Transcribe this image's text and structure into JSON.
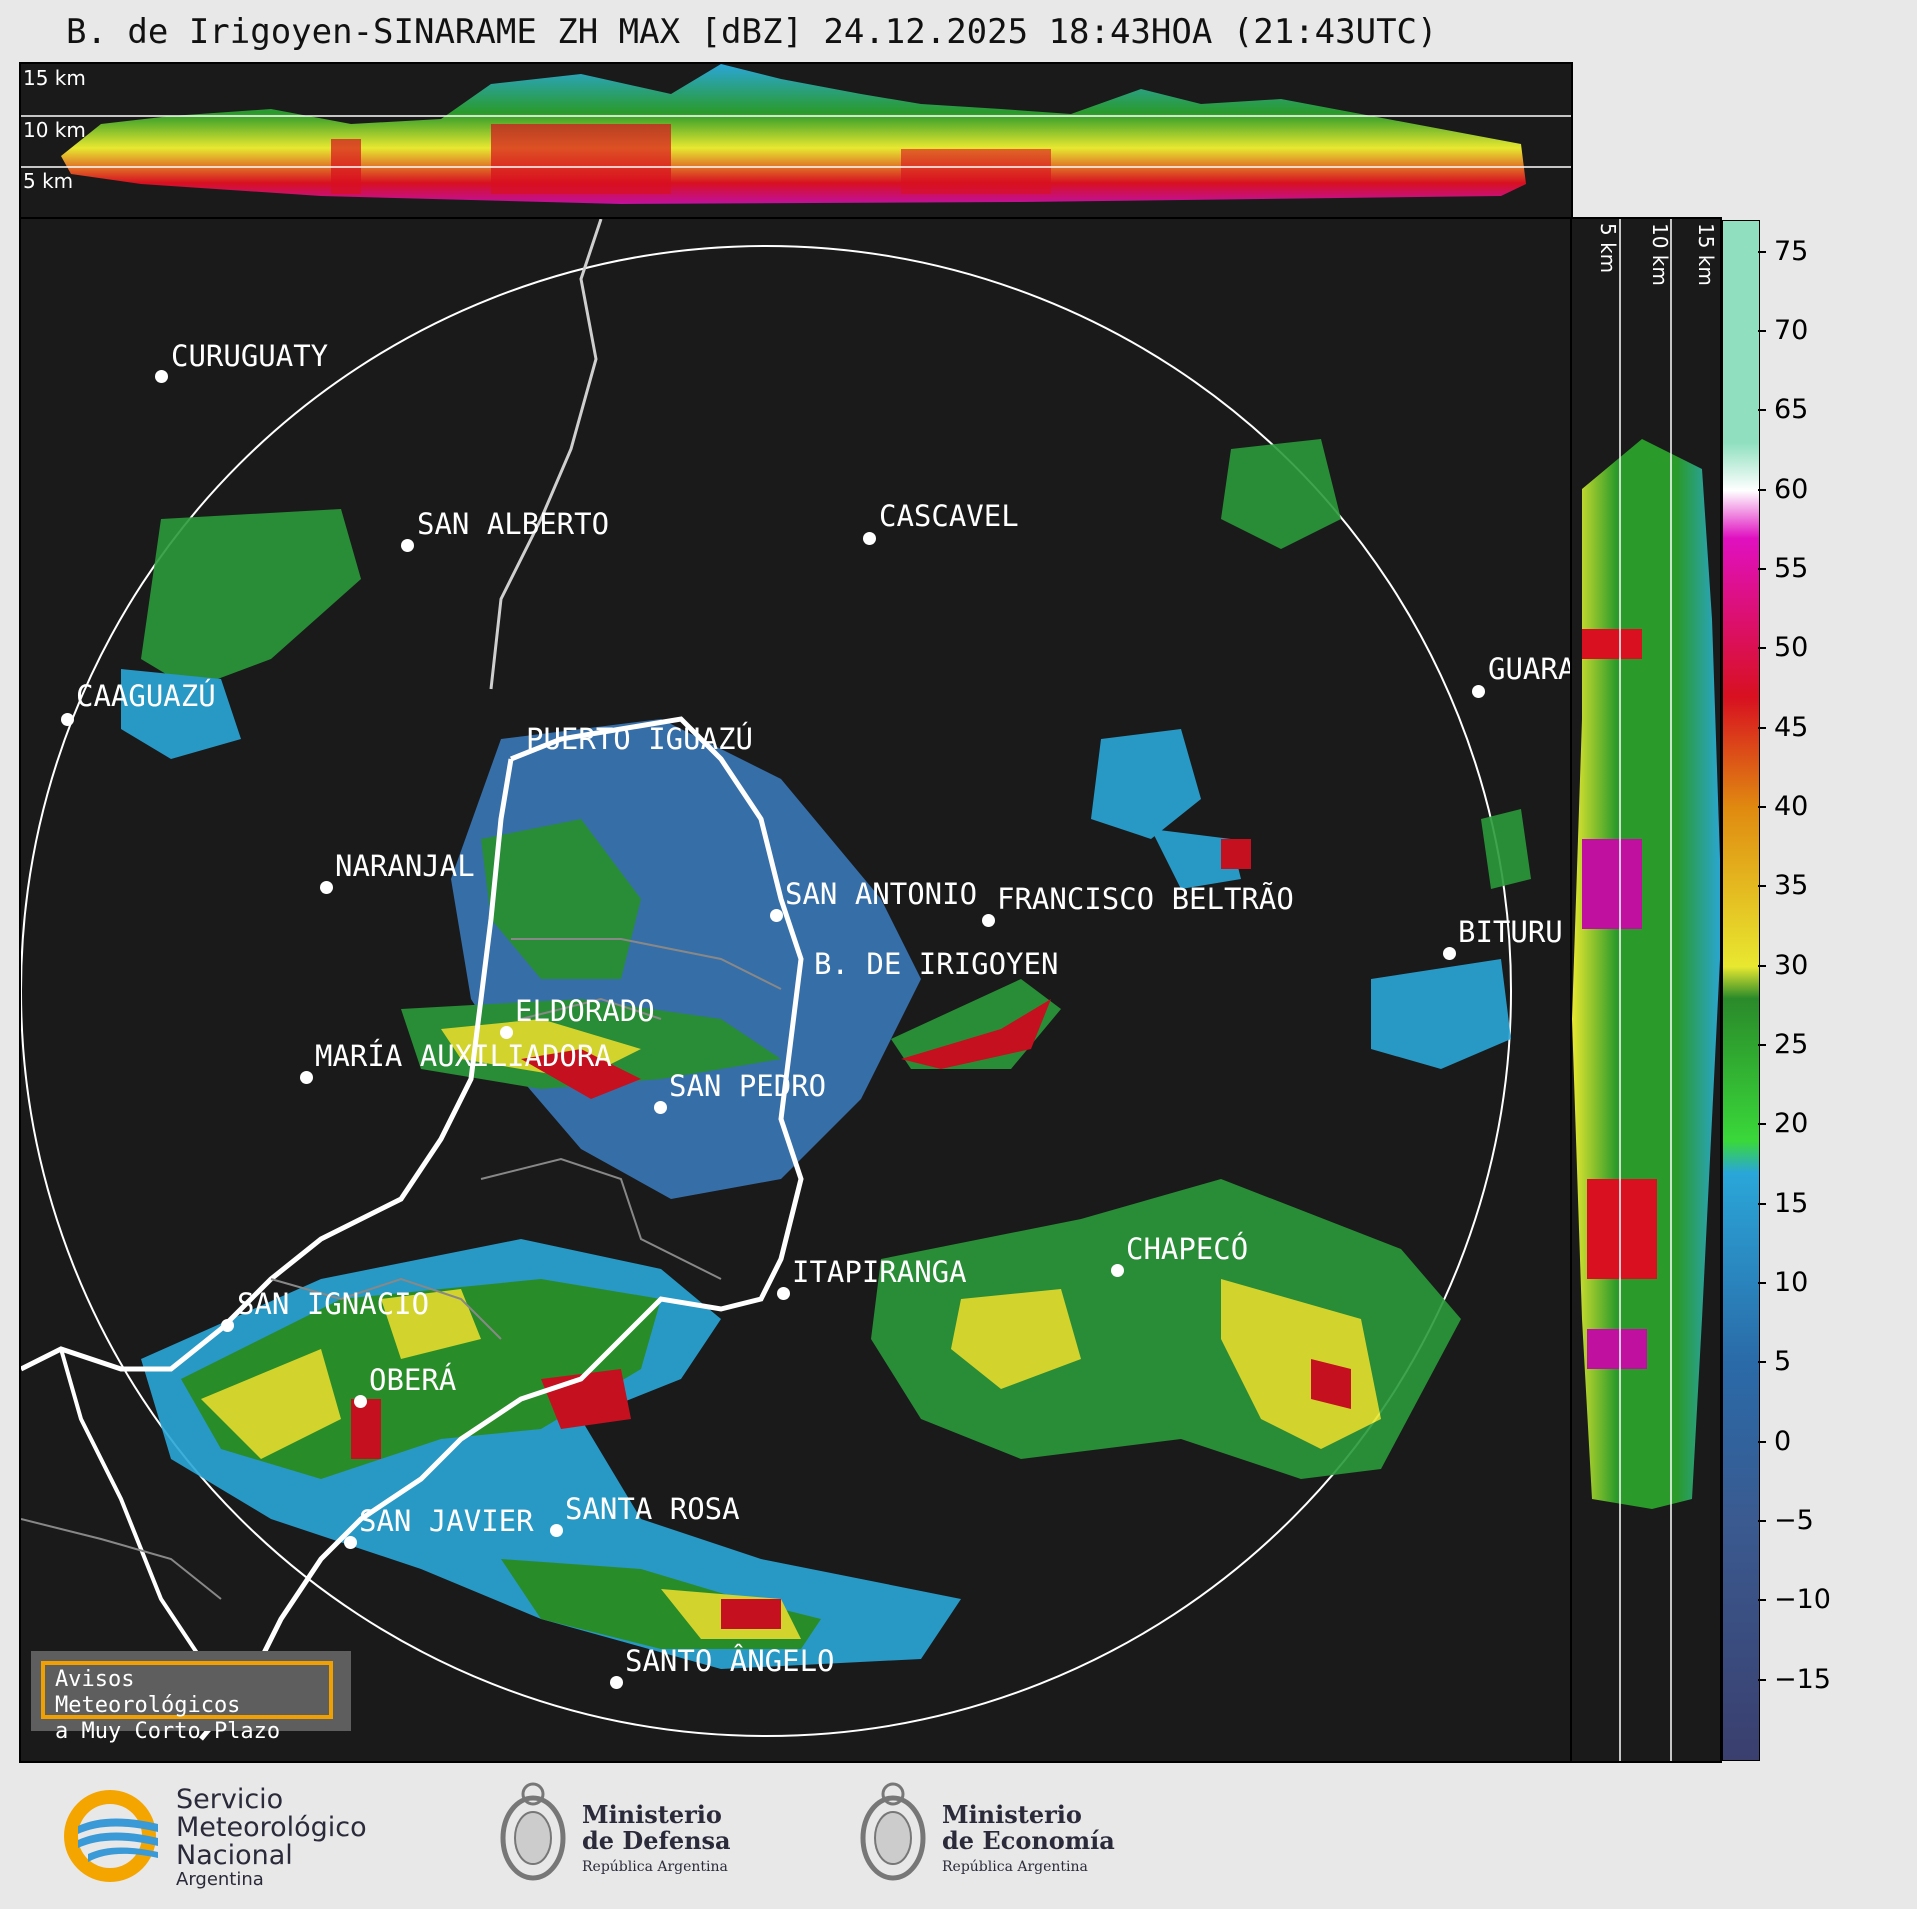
{
  "title": "B. de Irigoyen-SINARAME ZH MAX [dBZ] 24.12.2025 18:43HOA (21:43UTC)",
  "top_panel": {
    "height_labels": [
      "15 km",
      "10 km",
      "5 km"
    ]
  },
  "side_panel": {
    "height_labels": [
      "5 km",
      "10 km",
      "15 km"
    ]
  },
  "cities": [
    {
      "name": "CURUGUATY"
    },
    {
      "name": "SAN ALBERTO"
    },
    {
      "name": "CASCAVEL"
    },
    {
      "name": "CAAGUAZÚ"
    },
    {
      "name": "GUARA"
    },
    {
      "name": "PUERTO IGUAZÚ"
    },
    {
      "name": "NARANJAL"
    },
    {
      "name": "SAN ANTONIO"
    },
    {
      "name": "FRANCISCO BELTRÃO"
    },
    {
      "name": "BITURU"
    },
    {
      "name": "B. DE IRIGOYEN"
    },
    {
      "name": "ELDORADO"
    },
    {
      "name": "MARÍA AUXILIADORA"
    },
    {
      "name": "SAN PEDRO"
    },
    {
      "name": "CHAPECÓ"
    },
    {
      "name": "ITAPIRANGA"
    },
    {
      "name": "SAN IGNACIO"
    },
    {
      "name": "OBERÁ"
    },
    {
      "name": "SAN JAVIER"
    },
    {
      "name": "SANTA ROSA"
    },
    {
      "name": "SANTO ÂNGELO"
    }
  ],
  "colorbar": {
    "unit": "dBZ",
    "range": [
      -20,
      77
    ],
    "ticks": [
      "75",
      "70",
      "65",
      "60",
      "55",
      "50",
      "45",
      "40",
      "35",
      "30",
      "25",
      "20",
      "15",
      "10",
      "5",
      "0",
      "−5",
      "−10",
      "−15"
    ],
    "colors": {
      "low": "#3a3f6e",
      "blue": "#2aa6d8",
      "green": "#2a8a2a",
      "yellow": "#e8e830",
      "orange": "#e08a10",
      "red": "#d81020",
      "magenta": "#e010c0",
      "white": "#ffffff",
      "mint": "#90e0c0"
    }
  },
  "warning_box": {
    "line1": "Avisos Meteorológicos",
    "line2": "a Muy Corto Plazo"
  },
  "logos": {
    "smn": {
      "line1": "Servicio",
      "line2": "Meteorológico",
      "line3": "Nacional",
      "line4": "Argentina"
    },
    "defensa": {
      "line1": "Ministerio",
      "line2": "de Defensa",
      "line3": "República Argentina"
    },
    "economia": {
      "line1": "Ministerio",
      "line2": "de Economía",
      "line3": "República Argentina"
    }
  }
}
